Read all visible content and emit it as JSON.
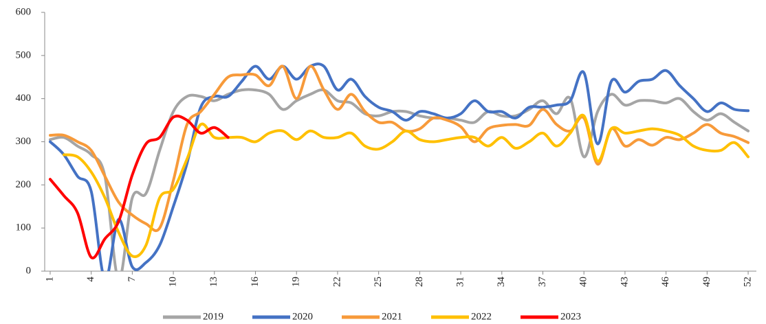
{
  "chart_data": {
    "type": "line",
    "x": [
      1,
      2,
      3,
      4,
      5,
      6,
      7,
      8,
      9,
      10,
      11,
      12,
      13,
      14,
      15,
      16,
      17,
      18,
      19,
      20,
      21,
      22,
      23,
      24,
      25,
      26,
      27,
      28,
      29,
      30,
      31,
      32,
      33,
      34,
      35,
      36,
      37,
      38,
      39,
      40,
      41,
      42,
      43,
      44,
      45,
      46,
      47,
      48,
      49,
      50,
      51,
      52
    ],
    "xlim": [
      0.6,
      52.6
    ],
    "xticks": [
      1,
      4,
      7,
      10,
      13,
      16,
      19,
      22,
      25,
      28,
      31,
      34,
      37,
      40,
      43,
      46,
      49,
      52
    ],
    "ylim": [
      0,
      600
    ],
    "yticks": [
      0,
      100,
      200,
      300,
      400,
      500,
      600
    ],
    "grid": false,
    "legend": "bottom",
    "series": [
      {
        "name": "2019",
        "color": "#a5a5a5",
        "values": [
          305,
          310,
          290,
          270,
          220,
          -20,
          170,
          180,
          280,
          370,
          405,
          405,
          395,
          410,
          420,
          420,
          410,
          375,
          395,
          410,
          420,
          395,
          390,
          365,
          360,
          370,
          370,
          360,
          355,
          355,
          350,
          345,
          370,
          360,
          360,
          375,
          395,
          365,
          400,
          265,
          370,
          410,
          385,
          395,
          395,
          390,
          400,
          370,
          350,
          365,
          345,
          325
        ]
      },
      {
        "name": "2020",
        "color": "#4472c4",
        "values": [
          300,
          270,
          220,
          185,
          -20,
          120,
          10,
          20,
          60,
          150,
          250,
          380,
          405,
          405,
          440,
          475,
          445,
          475,
          445,
          475,
          475,
          420,
          445,
          405,
          380,
          370,
          350,
          370,
          365,
          355,
          365,
          395,
          370,
          370,
          355,
          380,
          380,
          385,
          395,
          460,
          295,
          440,
          415,
          440,
          445,
          465,
          430,
          400,
          370,
          390,
          375,
          372
        ]
      },
      {
        "name": "2021",
        "color": "#f79a3a",
        "values": [
          315,
          315,
          300,
          280,
          220,
          160,
          130,
          110,
          100,
          210,
          340,
          370,
          410,
          450,
          455,
          455,
          430,
          475,
          400,
          475,
          420,
          375,
          410,
          370,
          345,
          345,
          325,
          330,
          355,
          350,
          335,
          300,
          330,
          338,
          340,
          338,
          375,
          340,
          325,
          355,
          248,
          330,
          290,
          305,
          292,
          310,
          305,
          320,
          340,
          320,
          312,
          298
        ]
      },
      {
        "name": "2022",
        "color": "#ffc000",
        "values": [
          null,
          270,
          265,
          230,
          170,
          90,
          35,
          60,
          170,
          190,
          260,
          340,
          310,
          310,
          310,
          300,
          320,
          325,
          305,
          325,
          310,
          310,
          320,
          290,
          283,
          300,
          325,
          305,
          300,
          305,
          310,
          310,
          290,
          310,
          285,
          300,
          320,
          290,
          320,
          360,
          255,
          330,
          320,
          325,
          330,
          325,
          315,
          290,
          280,
          280,
          298,
          265
        ]
      },
      {
        "name": "2023",
        "color": "#ff0000",
        "values": [
          213,
          175,
          135,
          32,
          75,
          115,
          223,
          295,
          310,
          357,
          350,
          320,
          333,
          310,
          null,
          null,
          null,
          null,
          null,
          null,
          null,
          null,
          null,
          null,
          null,
          null,
          null,
          null,
          null,
          null,
          null,
          null,
          null,
          null,
          null,
          null,
          null,
          null,
          null,
          null,
          null,
          null,
          null,
          null,
          null,
          null,
          null,
          null,
          null,
          null,
          null,
          null
        ]
      }
    ]
  }
}
